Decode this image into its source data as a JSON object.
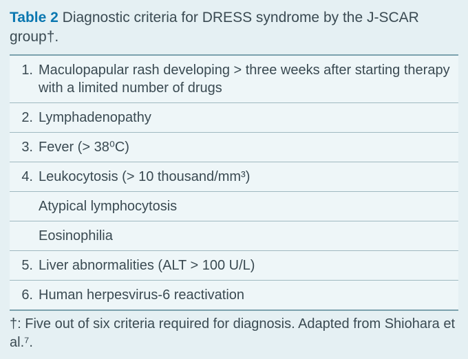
{
  "caption": {
    "label": "Table 2",
    "text": "Diagnostic criteria for DRESS syndrome by the J-SCAR group†."
  },
  "colors": {
    "background": "#e5f0f3",
    "row_background": "#eef6f8",
    "border": "#9fb8c0",
    "border_strong": "#7aa1ad",
    "text": "#3a4a52",
    "accent": "#0a77b0"
  },
  "typography": {
    "font_family": "Segoe UI, Lucida Sans, Arial, sans-serif",
    "caption_fontsize": 21,
    "cell_fontsize": 20,
    "footnote_fontsize": 20
  },
  "criteria": [
    {
      "num": "1.",
      "text": "Maculopapular rash developing > three weeks after starting therapy with a limited number of drugs"
    },
    {
      "num": "2.",
      "text": "Lymphadenopathy"
    },
    {
      "num": "3.",
      "text": "Fever (> 38⁰C)"
    },
    {
      "num": "4.",
      "text": "Leukocytosis (> 10 thousand/mm³)"
    },
    {
      "num": "",
      "text": "Atypical lymphocytosis",
      "sub": true
    },
    {
      "num": "",
      "text": "Eosinophilia",
      "sub": true
    },
    {
      "num": "5.",
      "text": "Liver abnormalities (ALT > 100 U/L)"
    },
    {
      "num": "6.",
      "text": "Human herpesvirus-6 reactivation"
    }
  ],
  "footnote": "†: Five out of six criteria required for diagnosis. Adapted from Shiohara et al.⁷."
}
